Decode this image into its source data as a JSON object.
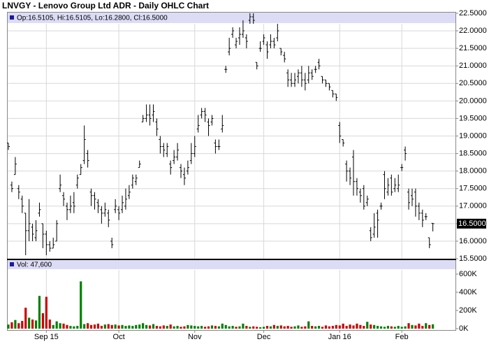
{
  "chart_data": [
    {
      "type": "ohlc",
      "title": "LNVGY - Lenovo Group Ltd ADR - Daily OHLC Chart",
      "info": "Op:16.5105, Hi:16.5105, Lo:16.2800, Cl:16.5000",
      "color": "#000000",
      "grid": true,
      "open": [
        18.8,
        17.6,
        17.9,
        17.5,
        17.2,
        16.8,
        16.3,
        16.4,
        16.1,
        16.8,
        16.5,
        16.2,
        15.9,
        15.8,
        16.0,
        17.5,
        17.3,
        17.0,
        16.9,
        17.1,
        17.6,
        17.9,
        18.3,
        18.5,
        17.4,
        17.3,
        17.1,
        16.9,
        16.8,
        16.8,
        16.0,
        16.9,
        16.9,
        16.9,
        17.0,
        17.3,
        17.6,
        17.7,
        18.1,
        19.4,
        19.5,
        19.6,
        19.6,
        19.4,
        18.9,
        18.7,
        18.5,
        18.2,
        18.3,
        18.4,
        18.1,
        17.9,
        18.0,
        18.3,
        18.5,
        19.2,
        19.6,
        19.7,
        19.4,
        19.4,
        18.8,
        18.7,
        19.2,
        20.9,
        21.4,
        21.9,
        21.6,
        21.8,
        21.9,
        21.8,
        22.3,
        22.4,
        21.1,
        21.5,
        21.7,
        21.6,
        21.6,
        21.7,
        21.8,
        21.5,
        21.3,
        20.8,
        20.6,
        20.5,
        20.7,
        20.8,
        20.6,
        20.6,
        20.8,
        20.9,
        21.1,
        20.7,
        20.6,
        20.5,
        20.3,
        20.2,
        19.3,
        18.9,
        18.2,
        18.0,
        18.4,
        17.7,
        17.4,
        17.5,
        17.1,
        16.3,
        16.2,
        16.8,
        17.0,
        17.9,
        17.4,
        17.8,
        17.5,
        17.5,
        18.1,
        18.6,
        17.4,
        17.3,
        17.4,
        17.0,
        16.8,
        16.7,
        16.1,
        16.5105
      ],
      "high": [
        18.8,
        17.7,
        18.4,
        17.6,
        17.3,
        16.8,
        17.2,
        16.5,
        16.6,
        17.1,
        16.5,
        16.3,
        16.0,
        16.1,
        16.6,
        17.9,
        17.4,
        17.1,
        17.3,
        17.4,
        17.9,
        18.2,
        19.3,
        18.6,
        17.5,
        17.4,
        17.2,
        17.0,
        17.1,
        16.9,
        16.1,
        17.2,
        17.0,
        17.3,
        17.5,
        17.6,
        17.9,
        17.9,
        18.3,
        19.6,
        19.9,
        19.9,
        19.9,
        19.5,
        19.0,
        18.8,
        18.8,
        18.3,
        18.6,
        18.8,
        18.2,
        18.1,
        18.3,
        18.8,
        19.0,
        19.6,
        19.8,
        19.8,
        19.5,
        19.6,
        18.9,
        18.9,
        19.6,
        21.0,
        21.8,
        22.1,
        21.8,
        22.1,
        22.3,
        21.9,
        22.5,
        22.5,
        21.1,
        21.7,
        21.9,
        21.7,
        21.9,
        21.8,
        22.2,
        21.5,
        21.4,
        20.9,
        20.8,
        20.8,
        20.9,
        21.0,
        20.8,
        21.0,
        20.9,
        21.0,
        21.2,
        20.7,
        20.6,
        20.5,
        20.3,
        20.2,
        19.4,
        18.9,
        18.3,
        18.1,
        18.6,
        17.8,
        17.5,
        17.6,
        17.3,
        16.4,
        16.8,
        16.9,
        17.1,
        18.0,
        17.8,
        17.9,
        17.8,
        17.9,
        18.2,
        18.7,
        17.5,
        17.5,
        17.5,
        17.1,
        16.9,
        16.8,
        16.1,
        16.5105
      ],
      "low": [
        18.6,
        17.4,
        17.9,
        17.2,
        16.8,
        15.6,
        16.0,
        16.0,
        16.0,
        16.7,
        15.8,
        15.6,
        15.7,
        15.8,
        16.0,
        17.4,
        17.0,
        16.6,
        16.8,
        16.8,
        17.5,
        17.9,
        18.2,
        18.1,
        17.0,
        16.9,
        16.8,
        16.5,
        16.7,
        16.4,
        15.8,
        16.8,
        16.6,
        16.8,
        16.9,
        17.2,
        17.5,
        17.6,
        18.1,
        19.4,
        19.4,
        19.3,
        19.4,
        19.0,
        18.5,
        18.4,
        18.4,
        17.9,
        18.2,
        18.3,
        17.8,
        17.6,
        17.9,
        18.2,
        18.4,
        19.1,
        19.5,
        19.4,
        19.0,
        19.3,
        18.5,
        18.6,
        19.1,
        20.8,
        21.3,
        21.8,
        21.5,
        21.6,
        21.8,
        21.5,
        22.2,
        22.2,
        20.9,
        21.4,
        21.6,
        21.2,
        21.5,
        21.5,
        21.7,
        21.3,
        21.1,
        20.4,
        20.4,
        20.4,
        20.5,
        20.4,
        20.3,
        20.5,
        20.6,
        20.8,
        20.9,
        20.5,
        20.4,
        20.3,
        20.1,
        20.0,
        18.8,
        18.7,
        17.7,
        17.6,
        17.3,
        17.3,
        17.1,
        16.9,
        17.0,
        16.0,
        16.1,
        16.1,
        16.9,
        17.2,
        17.3,
        17.3,
        17.4,
        17.4,
        18.0,
        18.3,
        16.9,
        17.0,
        16.7,
        16.6,
        16.4,
        16.6,
        15.8,
        16.28
      ],
      "close": [
        18.7,
        17.5,
        18.2,
        17.4,
        17.0,
        16.3,
        16.5,
        16.2,
        16.3,
        16.9,
        16.2,
        15.9,
        15.8,
        15.9,
        16.5,
        17.6,
        17.2,
        16.9,
        17.0,
        17.0,
        17.8,
        18.1,
        18.9,
        18.3,
        17.3,
        17.2,
        17.0,
        16.8,
        16.9,
        16.6,
        15.9,
        17.0,
        16.8,
        17.1,
        17.2,
        17.4,
        17.8,
        17.8,
        18.2,
        19.5,
        19.6,
        19.5,
        19.7,
        19.2,
        18.7,
        18.6,
        18.7,
        18.1,
        18.4,
        18.6,
        18.0,
        17.8,
        18.1,
        18.5,
        18.7,
        19.3,
        19.7,
        19.6,
        19.3,
        19.5,
        18.7,
        18.7,
        19.3,
        20.9,
        21.5,
        22.0,
        21.7,
        21.9,
        22.0,
        21.7,
        22.4,
        22.3,
        21.0,
        21.5,
        21.8,
        21.4,
        21.7,
        21.6,
        22.0,
        21.4,
        21.2,
        20.6,
        20.5,
        20.6,
        20.8,
        20.6,
        20.5,
        20.8,
        20.7,
        20.9,
        21.0,
        20.6,
        20.5,
        20.4,
        20.2,
        20.1,
        19.0,
        18.8,
        18.0,
        17.8,
        17.7,
        17.5,
        17.3,
        17.0,
        17.2,
        16.1,
        16.4,
        16.6,
        17.0,
        17.5,
        17.6,
        17.4,
        17.6,
        17.6,
        18.1,
        18.5,
        17.1,
        17.2,
        17.0,
        16.8,
        16.6,
        16.7,
        15.9,
        16.5
      ],
      "xticks": [
        {
          "value": 11,
          "label": "Sep 15"
        },
        {
          "value": 32,
          "label": "Oct"
        },
        {
          "value": 54,
          "label": "Nov"
        },
        {
          "value": 74,
          "label": "Dec"
        },
        {
          "value": 96,
          "label": "Jan 16"
        },
        {
          "value": 114,
          "label": "Feb"
        }
      ],
      "ylim": [
        15.5,
        22.5
      ],
      "yticks": [
        {
          "value": 15.5,
          "label": "15.5000"
        },
        {
          "value": 16,
          "label": "16.0000"
        },
        {
          "value": 16.5,
          "label": "16.5000"
        },
        {
          "value": 17,
          "label": "17.0000"
        },
        {
          "value": 17.5,
          "label": "17.5000"
        },
        {
          "value": 18,
          "label": "18.0000"
        },
        {
          "value": 18.5,
          "label": "18.5000"
        },
        {
          "value": 19,
          "label": "19.0000"
        },
        {
          "value": 19.5,
          "label": "19.5000"
        },
        {
          "value": 20,
          "label": "20.0000"
        },
        {
          "value": 20.5,
          "label": "20.5000"
        },
        {
          "value": 21,
          "label": "21.0000"
        },
        {
          "value": 21.5,
          "label": "21.5000"
        },
        {
          "value": 22,
          "label": "22.0000"
        },
        {
          "value": 22.5,
          "label": "22.5000"
        }
      ],
      "last_price": {
        "value": 16.5,
        "label": "16.5000"
      }
    },
    {
      "type": "volume",
      "info": "Vol: 47,600",
      "up_color": "#008000",
      "down_color": "#cc0000",
      "values": [
        45,
        70,
        95,
        60,
        85,
        230,
        120,
        100,
        90,
        360,
        170,
        350,
        100,
        40,
        80,
        60,
        55,
        40,
        30,
        25,
        30,
        520,
        50,
        60,
        40,
        45,
        55,
        30,
        45,
        50,
        40,
        45,
        35,
        40,
        30,
        35,
        30,
        40,
        45,
        60,
        40,
        35,
        50,
        30,
        25,
        35,
        30,
        45,
        25,
        30,
        20,
        25,
        40,
        35,
        30,
        25,
        30,
        20,
        25,
        35,
        30,
        25,
        55,
        40,
        25,
        30,
        20,
        25,
        55,
        30,
        20,
        25,
        20,
        15,
        20,
        30,
        25,
        40,
        30,
        35,
        25,
        30,
        20,
        25,
        35,
        20,
        25,
        80,
        30,
        25,
        30,
        20,
        35,
        25,
        30,
        40,
        35,
        55,
        30,
        45,
        35,
        55,
        40,
        30,
        75,
        45,
        40,
        30,
        25,
        20,
        30,
        25,
        20,
        30,
        20,
        25,
        60,
        40,
        35,
        55,
        30,
        60,
        40,
        47.6
      ],
      "ylim": [
        0,
        600
      ],
      "yticks": [
        {
          "value": 0,
          "label": "0K"
        },
        {
          "value": 200,
          "label": "200K"
        },
        {
          "value": 400,
          "label": "400K"
        },
        {
          "value": 600,
          "label": "600K"
        }
      ]
    }
  ]
}
